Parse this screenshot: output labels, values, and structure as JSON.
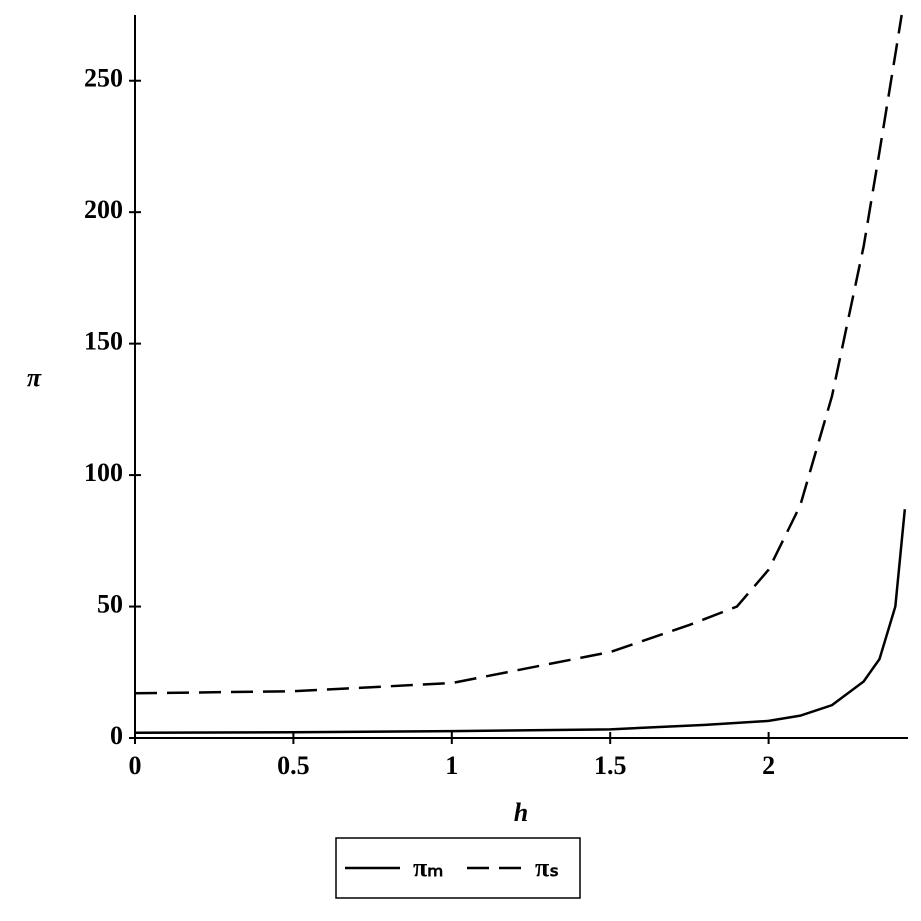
{
  "chart_data": {
    "type": "line",
    "x_label": "h",
    "y_label": "π",
    "xlim": [
      0,
      2.44
    ],
    "ylim": [
      0,
      275
    ],
    "xticks": [
      0,
      0.5,
      1,
      1.5,
      2
    ],
    "yticks": [
      0,
      50,
      100,
      150,
      200,
      250
    ],
    "series": [
      {
        "name": "πₘ",
        "color": "#000000",
        "dash": "solid",
        "x": [
          0,
          0.5,
          1,
          1.5,
          1.8,
          2,
          2.1,
          2.2,
          2.3,
          2.35,
          2.4,
          2.43
        ],
        "values": [
          2,
          2.2,
          2.6,
          3.3,
          5,
          6.5,
          8.5,
          12.5,
          21.5,
          30,
          50,
          87
        ]
      },
      {
        "name": "πₛ",
        "color": "#000000",
        "dash": "dashed",
        "x": [
          0,
          0.5,
          1,
          1.5,
          1.75,
          1.9,
          2,
          2.1,
          2.2,
          2.3,
          2.35,
          2.4,
          2.42
        ],
        "values": [
          17,
          17.8,
          20.9,
          32.7,
          43,
          50,
          64,
          88.5,
          130,
          187,
          223,
          260,
          275
        ]
      }
    ]
  }
}
